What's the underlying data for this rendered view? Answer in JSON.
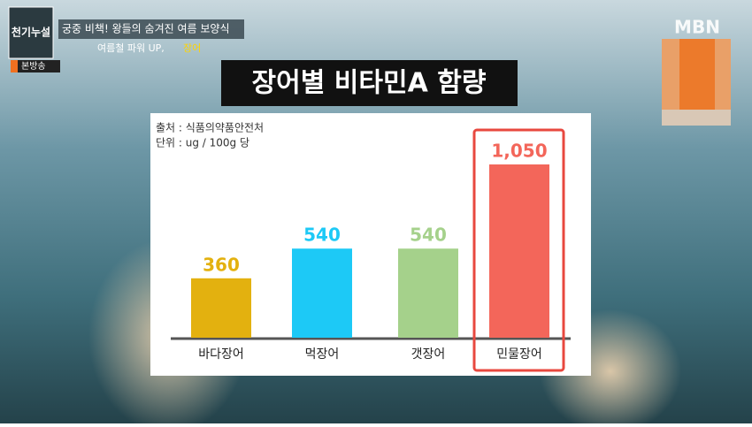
{
  "overlay": {
    "logo": "천기누설",
    "banner": "궁중 비책! 왕들의 숨겨진 여름 보양식",
    "subtitle": "여름철 파워 UP,",
    "subtitle_highlight": "장어",
    "badge": "본방송",
    "channel": "MBN"
  },
  "chart_data": {
    "type": "bar",
    "title": "장어별 비타민A 함량",
    "source": "출처 : 식품의약품안전처",
    "unit": "단위 : ug / 100g 당",
    "categories": [
      "바다장어",
      "먹장어",
      "갯장어",
      "민물장어"
    ],
    "values": [
      360,
      540,
      540,
      1050
    ],
    "value_labels": [
      "360",
      "540",
      "540",
      "1,050"
    ],
    "colors": [
      "#e3b10f",
      "#1dc9f6",
      "#a5d18b",
      "#f3665a"
    ]
  }
}
